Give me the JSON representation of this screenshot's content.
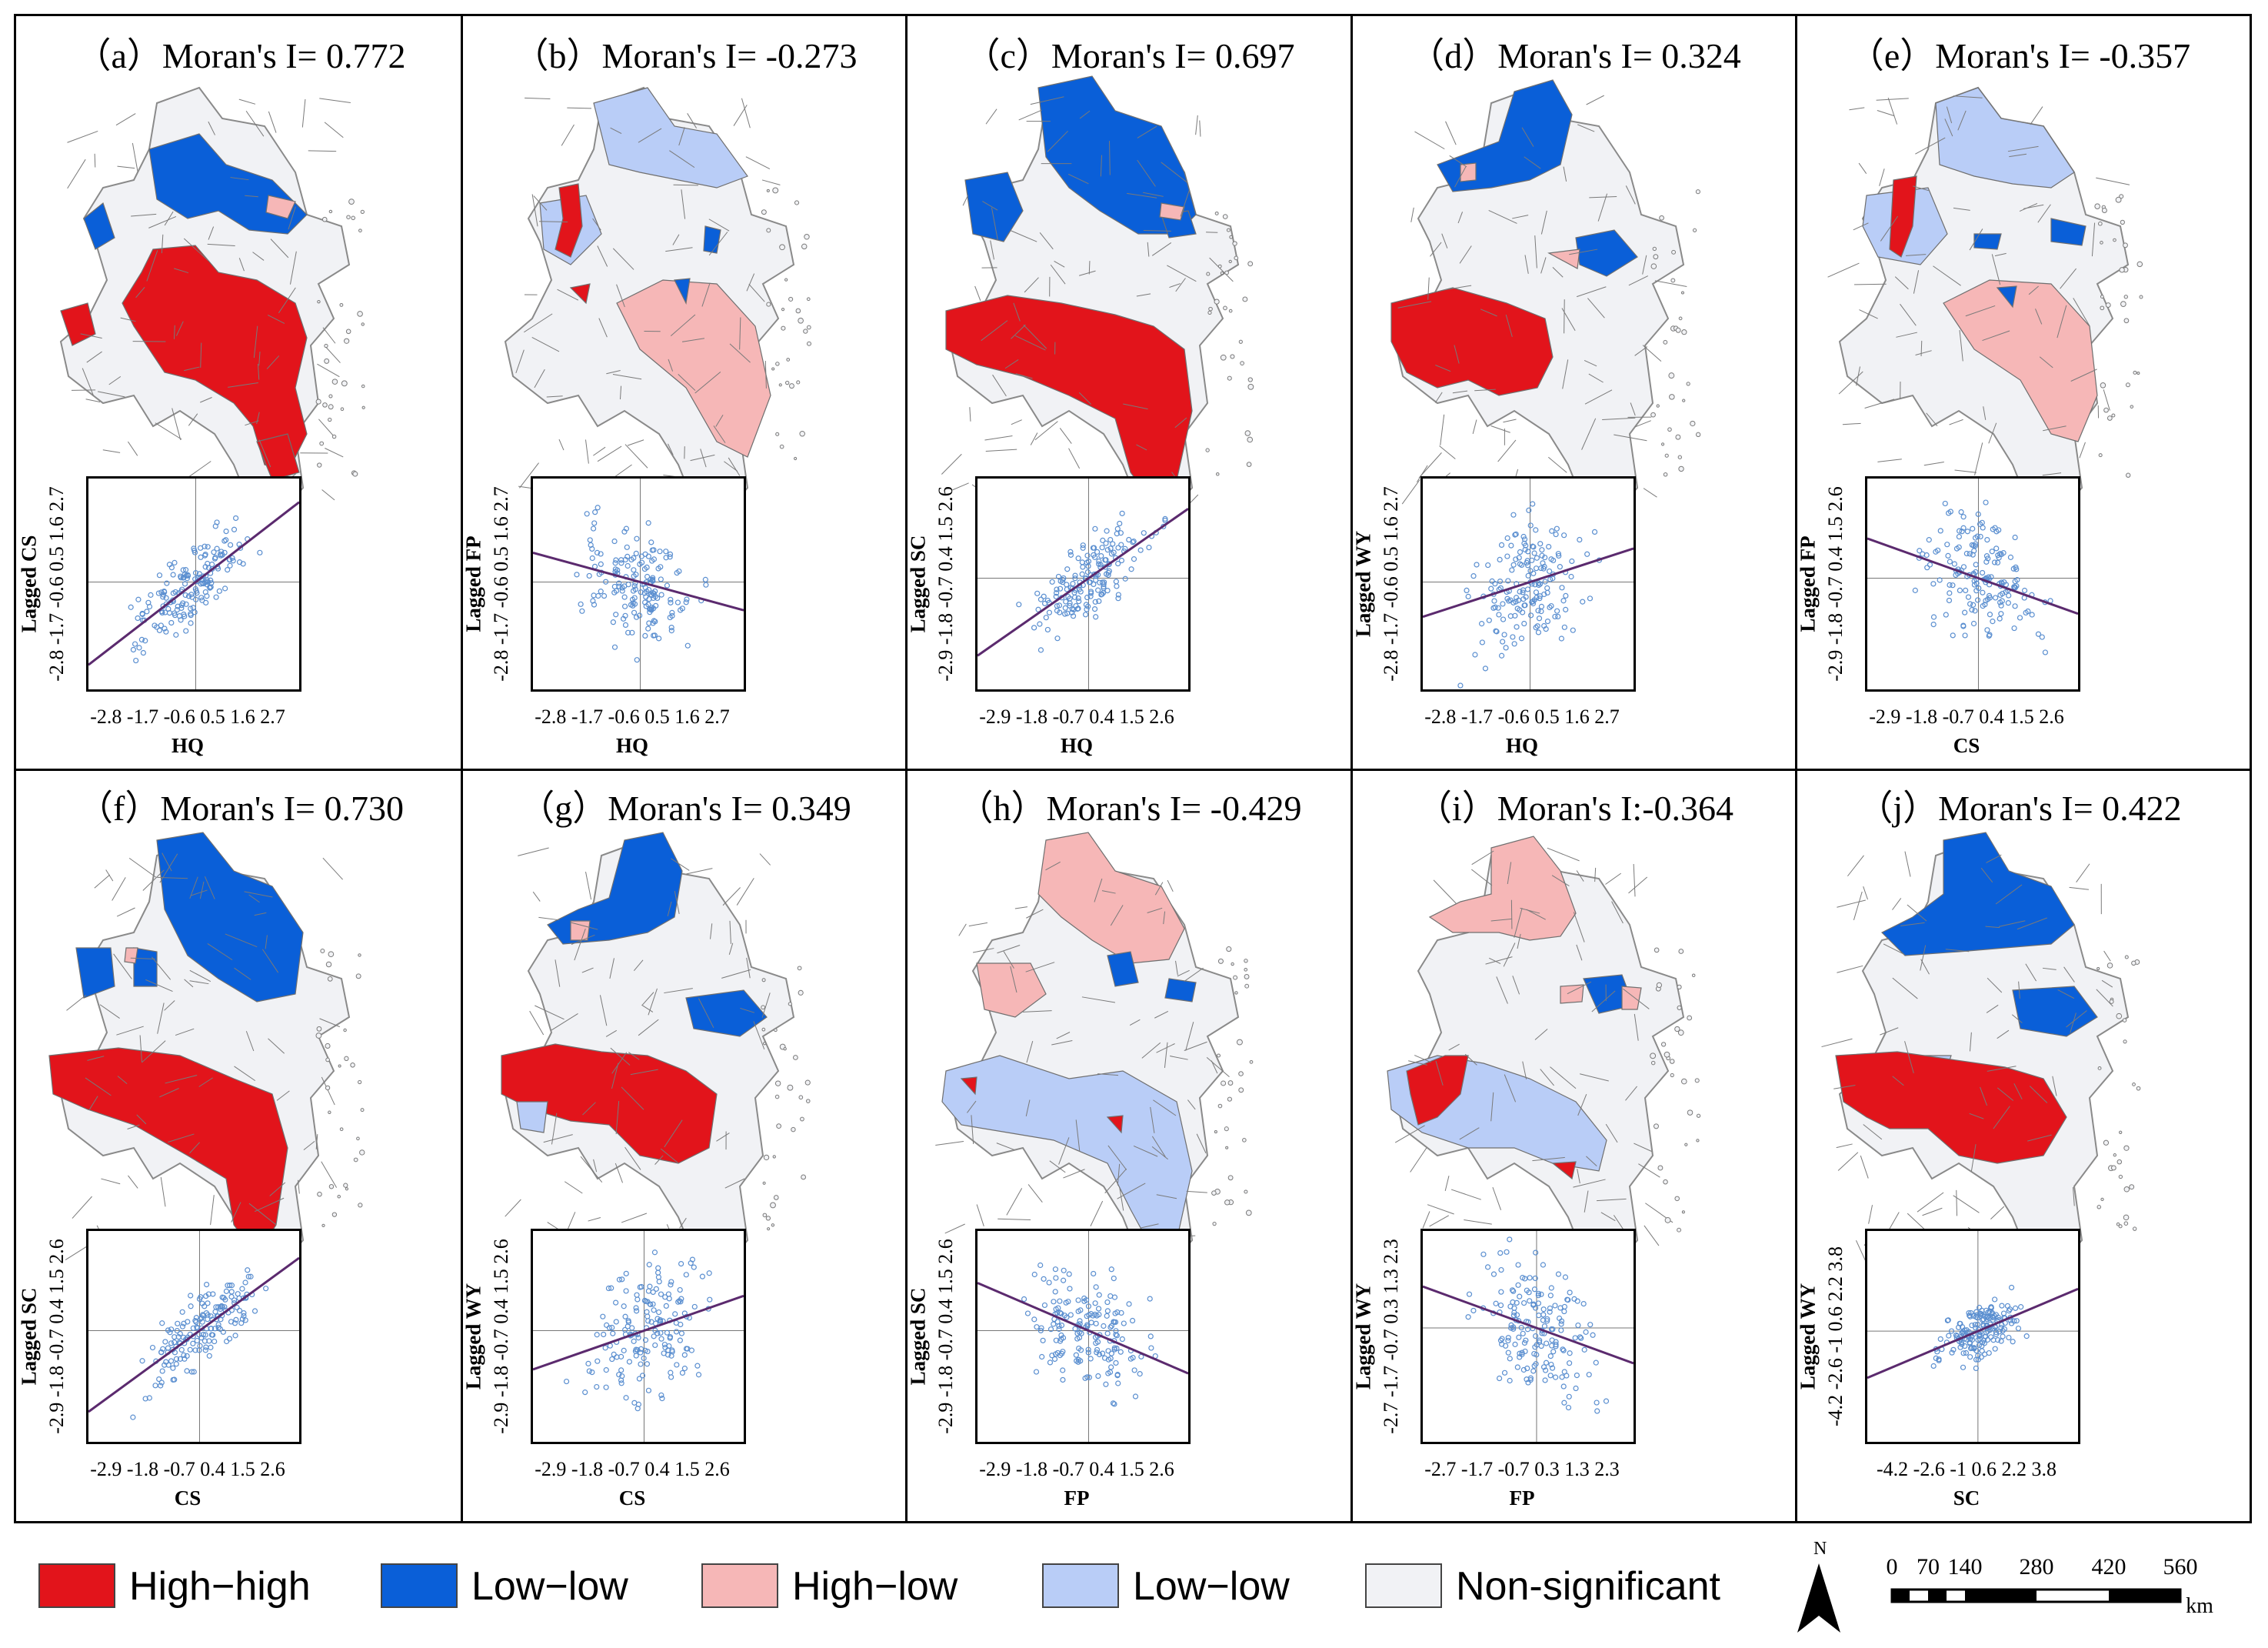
{
  "figure": {
    "panels": [
      {
        "id": "a",
        "title": "（a）Moran's I= 0.772",
        "moran_i": 0.772,
        "x_label": "HQ",
        "y_label": "Lagged CS",
        "x_ticks": "-2.8 -1.7 -0.6 0.5 1.6 2.7",
        "y_ticks": "-2.8 -1.7 -0.6 0.5 1.6 2.7",
        "axis_range": [
          -2.8,
          2.7
        ],
        "spread": 0.45
      },
      {
        "id": "b",
        "title": "（b）Moran's I= -0.273",
        "moran_i": -0.273,
        "x_label": "HQ",
        "y_label": "Lagged FP",
        "x_ticks": "-2.8 -1.7 -0.6 0.5 1.6 2.7",
        "y_ticks": "-2.8 -1.7 -0.6 0.5 1.6 2.7",
        "axis_range": [
          -2.8,
          2.7
        ],
        "spread": 0.75
      },
      {
        "id": "c",
        "title": "（c）Moran's I= 0.697",
        "moran_i": 0.697,
        "x_label": "HQ",
        "y_label": "Lagged SC",
        "x_ticks": "-2.9 -1.8 -0.7 0.4 1.5 2.6",
        "y_ticks": "-2.9 -1.8 -0.7 0.4 1.5 2.6",
        "axis_range": [
          -2.9,
          2.6
        ],
        "spread": 0.5
      },
      {
        "id": "d",
        "title": "（d）Moran's I= 0.324",
        "moran_i": 0.324,
        "x_label": "HQ",
        "y_label": "Lagged WY",
        "x_ticks": "-2.8 -1.7 -0.6 0.5 1.6 2.7",
        "y_ticks": "-2.8 -1.7 -0.6 0.5 1.6 2.7",
        "axis_range": [
          -2.8,
          2.7
        ],
        "spread": 0.8
      },
      {
        "id": "e",
        "title": "（e）Moran's I= -0.357",
        "moran_i": -0.357,
        "x_label": "CS",
        "y_label": "Lagged FP",
        "x_ticks": "-2.9 -1.8 -0.7 0.4 1.5 2.6",
        "y_ticks": "-2.9 -1.8 -0.7 0.4 1.5 2.6",
        "axis_range": [
          -2.9,
          2.6
        ],
        "spread": 0.75
      },
      {
        "id": "f",
        "title": "（f）Moran's I= 0.730",
        "moran_i": 0.73,
        "x_label": "CS",
        "y_label": "Lagged SC",
        "x_ticks": "-2.9 -1.8 -0.7 0.4 1.5 2.6",
        "y_ticks": "-2.9 -1.8 -0.7 0.4 1.5 2.6",
        "axis_range": [
          -2.9,
          2.6
        ],
        "spread": 0.45
      },
      {
        "id": "g",
        "title": "（g）Moran's I= 0.349",
        "moran_i": 0.349,
        "x_label": "CS",
        "y_label": "Lagged WY",
        "x_ticks": "-2.9 -1.8 -0.7 0.4 1.5 2.6",
        "y_ticks": "-2.9 -1.8 -0.7 0.4 1.5 2.6",
        "axis_range": [
          -2.9,
          2.6
        ],
        "spread": 0.85
      },
      {
        "id": "h",
        "title": "（h）Moran's I= -0.429",
        "moran_i": -0.429,
        "x_label": "FP",
        "y_label": "Lagged SC",
        "x_ticks": "-2.9 -1.8 -0.7 0.4 1.5 2.6",
        "y_ticks": "-2.9 -1.8 -0.7 0.4 1.5 2.6",
        "axis_range": [
          -2.9,
          2.6
        ],
        "spread": 0.7
      },
      {
        "id": "i",
        "title": "（i）Moran's I:-0.364",
        "moran_i": -0.364,
        "x_label": "FP",
        "y_label": "Lagged WY",
        "x_ticks": "-2.7 -1.7 -0.7 0.3 1.3 2.3",
        "y_ticks": "-2.7 -1.7 -0.7 0.3 1.3 2.3",
        "axis_range": [
          -2.7,
          2.3
        ],
        "spread": 0.75
      },
      {
        "id": "j",
        "title": "（j）Moran's I= 0.422",
        "moran_i": 0.422,
        "x_label": "SC",
        "y_label": "Lagged WY",
        "x_ticks": "-4.2 -2.6 -1 0.6 2.2 3.8",
        "y_ticks": "-4.2 -2.6 -1 0.6 2.2 3.8",
        "axis_range": [
          -4.2,
          3.8
        ],
        "spread": 0.55
      }
    ]
  },
  "legend": {
    "items": [
      {
        "label": "High−high",
        "color": "#e2141b"
      },
      {
        "label": "Low−low",
        "color": "#0a5fd8"
      },
      {
        "label": "High−low",
        "color": "#f6b7b7"
      },
      {
        "label": "Low−low",
        "color": "#b9cdf7"
      },
      {
        "label": "Non-significant",
        "color": "#f1f2f5"
      }
    ]
  },
  "north_arrow": {
    "label": "N"
  },
  "scale_bar": {
    "ticks": [
      "0",
      "70",
      "140",
      "280",
      "420",
      "560"
    ],
    "unit": "km"
  },
  "colors": {
    "line": "#5b2a6e",
    "points": "#5b8fd0",
    "outline": "#8a8a8a"
  }
}
